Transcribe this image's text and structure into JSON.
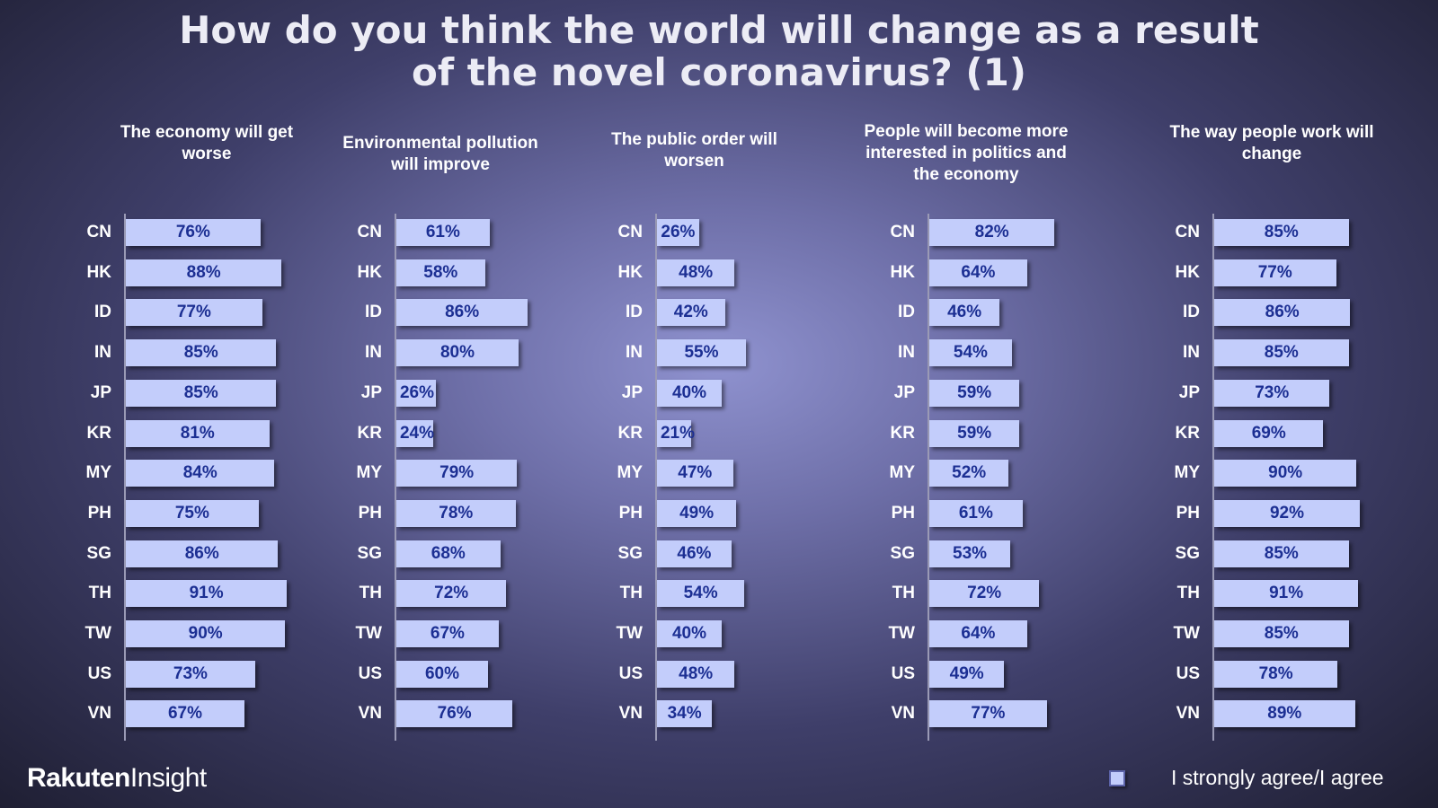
{
  "title_line1": "How do you think the world will change as a result",
  "title_line2": "of the novel coronavirus? (1)",
  "brand": {
    "part1": "Rakuten",
    "part2": "Insight"
  },
  "legend": {
    "label": "I strongly agree/I agree",
    "color": "#c3cdfb"
  },
  "chart_data": [
    {
      "type": "bar",
      "orientation": "horizontal",
      "title": "The economy will get worse",
      "categories": [
        "CN",
        "HK",
        "ID",
        "IN",
        "JP",
        "KR",
        "MY",
        "PH",
        "SG",
        "TH",
        "TW",
        "US",
        "VN"
      ],
      "values": [
        76,
        88,
        77,
        85,
        85,
        81,
        84,
        75,
        86,
        91,
        90,
        73,
        67
      ],
      "labels": [
        "76%",
        "88%",
        "77%",
        "85%",
        "85%",
        "81%",
        "84%",
        "75%",
        "86%",
        "91%",
        "90%",
        "73%",
        "67%"
      ],
      "series": [
        {
          "name": "I strongly agree/I agree"
        }
      ]
    },
    {
      "type": "bar",
      "orientation": "horizontal",
      "title": "Environmental pollution will improve",
      "categories": [
        "CN",
        "HK",
        "ID",
        "IN",
        "JP",
        "KR",
        "MY",
        "PH",
        "SG",
        "TH",
        "TW",
        "US",
        "VN"
      ],
      "values": [
        61,
        58,
        86,
        80,
        26,
        24,
        79,
        78,
        68,
        72,
        67,
        60,
        76
      ],
      "labels": [
        "61%",
        "58%",
        "86%",
        "80%",
        "26%",
        "24%",
        "79%",
        "78%",
        "68%",
        "72%",
        "67%",
        "60%",
        "76%"
      ],
      "series": [
        {
          "name": "I strongly agree/I agree"
        }
      ]
    },
    {
      "type": "bar",
      "orientation": "horizontal",
      "title": "The public order will worsen",
      "categories": [
        "CN",
        "HK",
        "ID",
        "IN",
        "JP",
        "KR",
        "MY",
        "PH",
        "SG",
        "TH",
        "TW",
        "US",
        "VN"
      ],
      "values": [
        26,
        48,
        42,
        55,
        40,
        21,
        47,
        49,
        46,
        54,
        40,
        48,
        34
      ],
      "labels": [
        "26%",
        "48%",
        "42%",
        "55%",
        "40%",
        "21%",
        "47%",
        "49%",
        "46%",
        "54%",
        "40%",
        "48%",
        "34%"
      ],
      "series": [
        {
          "name": "I strongly agree/I agree"
        }
      ]
    },
    {
      "type": "bar",
      "orientation": "horizontal",
      "title": "People will become more interested in politics and the economy",
      "categories": [
        "CN",
        "HK",
        "ID",
        "IN",
        "JP",
        "KR",
        "MY",
        "PH",
        "SG",
        "TH",
        "TW",
        "US",
        "VN"
      ],
      "values": [
        82,
        64,
        46,
        54,
        59,
        59,
        52,
        61,
        53,
        72,
        64,
        49,
        77
      ],
      "labels": [
        "82%",
        "64%",
        "46%",
        "54%",
        "59%",
        "59%",
        "52%",
        "61%",
        "53%",
        "72%",
        "64%",
        "49%",
        "77%"
      ],
      "series": [
        {
          "name": "I strongly agree/I agree"
        }
      ]
    },
    {
      "type": "bar",
      "orientation": "horizontal",
      "title": "The way people work will change",
      "categories": [
        "CN",
        "HK",
        "ID",
        "IN",
        "JP",
        "KR",
        "MY",
        "PH",
        "SG",
        "TH",
        "TW",
        "US",
        "VN"
      ],
      "values": [
        85,
        77,
        86,
        85,
        73,
        69,
        90,
        92,
        85,
        91,
        85,
        78,
        89
      ],
      "labels": [
        "85%",
        "77%",
        "86%",
        "85%",
        "73%",
        "69%",
        "90%",
        "92%",
        "85%",
        "91%",
        "85%",
        "78%",
        "89%"
      ],
      "series": [
        {
          "name": "I strongly agree/I agree"
        }
      ]
    }
  ]
}
